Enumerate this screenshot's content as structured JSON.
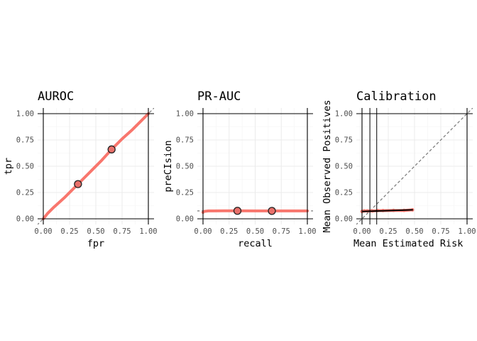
{
  "chart_data": [
    {
      "type": "line",
      "title": "AUROC",
      "xlabel": "fpr",
      "ylabel": "tpr",
      "xlim": [
        0,
        1
      ],
      "ylim": [
        0,
        1
      ],
      "xticks": [
        "0.00",
        "0.25",
        "0.50",
        "0.75",
        "1.00"
      ],
      "yticks": [
        "0.00",
        "0.25",
        "0.50",
        "0.75",
        "1.00"
      ],
      "grid": true,
      "reference_line": "diagonal",
      "series": [
        {
          "color": "#F8766D",
          "x": [
            0,
            0.04,
            0.1,
            0.2,
            0.33,
            0.45,
            0.55,
            0.65,
            0.75,
            0.85,
            0.93,
            1.0
          ],
          "y": [
            0,
            0.05,
            0.11,
            0.2,
            0.33,
            0.45,
            0.55,
            0.66,
            0.76,
            0.85,
            0.93,
            1.0
          ]
        }
      ],
      "points": [
        {
          "x": 0.33,
          "y": 0.33
        },
        {
          "x": 0.65,
          "y": 0.66
        }
      ]
    },
    {
      "type": "line",
      "title": "PR-AUC",
      "xlabel": "recall",
      "ylabel": "preCIsion",
      "xlim": [
        0,
        1
      ],
      "ylim": [
        0,
        1
      ],
      "xticks": [
        "0.00",
        "0.25",
        "0.50",
        "0.75",
        "1.00"
      ],
      "yticks": [
        "0.00",
        "0.25",
        "0.50",
        "0.75",
        "1.00"
      ],
      "grid": true,
      "baseline": 0.075,
      "series": [
        {
          "color": "#F8766D",
          "x": [
            0,
            0.01,
            0.05,
            0.1,
            0.2,
            0.33,
            0.5,
            0.65,
            0.8,
            0.9,
            1.0
          ],
          "y": [
            0.06,
            0.07,
            0.075,
            0.075,
            0.076,
            0.076,
            0.075,
            0.075,
            0.075,
            0.075,
            0.075
          ]
        }
      ],
      "points": [
        {
          "x": 0.33,
          "y": 0.076
        },
        {
          "x": 0.66,
          "y": 0.075
        }
      ]
    },
    {
      "type": "line",
      "title": "Calibration",
      "xlabel": "Mean Estimated Risk",
      "ylabel": "Mean Observed Positives",
      "xlim": [
        0,
        1
      ],
      "ylim": [
        0,
        1
      ],
      "xticks": [
        "0.00",
        "0.25",
        "0.50",
        "0.75",
        "1.00"
      ],
      "yticks": [
        "0.00",
        "0.25",
        "0.50",
        "0.75",
        "1.00"
      ],
      "grid": true,
      "reference_line": "diagonal",
      "vlines": [
        0.075,
        0.14
      ],
      "series": [
        {
          "color": "#F8766D",
          "x": [
            0.0,
            0.02,
            0.05,
            0.1,
            0.15,
            0.2,
            0.3,
            0.4,
            0.48
          ],
          "y": [
            0.07,
            0.075,
            0.075,
            0.075,
            0.078,
            0.078,
            0.08,
            0.08,
            0.085
          ]
        },
        {
          "color": "#000000",
          "x": [
            0.01,
            0.48
          ],
          "y": [
            0.07,
            0.085
          ]
        }
      ]
    }
  ]
}
